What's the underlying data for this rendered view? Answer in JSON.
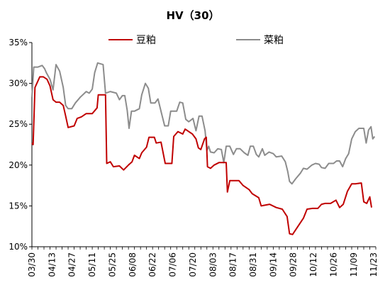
{
  "chart_data": {
    "type": "line",
    "title": "HV（30）",
    "xlabel": "",
    "ylabel": "",
    "ylim": [
      10,
      35
    ],
    "yticks": [
      "10%",
      "15%",
      "20%",
      "25%",
      "30%",
      "35%"
    ],
    "yunit": "%",
    "grid": false,
    "legend_position": "top-center",
    "x_tick_labels": [
      "03/30",
      "04/13",
      "04/27",
      "05/11",
      "05/25",
      "06/08",
      "06/22",
      "07/06",
      "07/20",
      "08/03",
      "08/17",
      "08/31",
      "09/14",
      "09/28",
      "10/12",
      "10/26",
      "11/09",
      "11/23"
    ],
    "series": [
      {
        "name": "豆粕",
        "color": "#c00000",
        "points": [
          [
            0,
            22.7
          ],
          [
            0.2,
            22.5
          ],
          [
            0.5,
            29.5
          ],
          [
            1.3,
            30.8
          ],
          [
            1.9,
            30.8
          ],
          [
            2.5,
            30.5
          ],
          [
            3,
            29.7
          ],
          [
            3.5,
            28
          ],
          [
            4,
            27.7
          ],
          [
            4.6,
            27.7
          ],
          [
            5.2,
            27.3
          ],
          [
            5.6,
            26
          ],
          [
            6,
            24.6
          ],
          [
            7,
            24.8
          ],
          [
            7.5,
            25.7
          ],
          [
            8.2,
            25.9
          ],
          [
            9,
            26.3
          ],
          [
            10,
            26.3
          ],
          [
            10.8,
            27
          ],
          [
            11,
            28.6
          ],
          [
            12.2,
            28.6
          ],
          [
            12.4,
            20.2
          ],
          [
            13,
            20.4
          ],
          [
            13.5,
            19.8
          ],
          [
            14.5,
            19.9
          ],
          [
            15.2,
            19.4
          ],
          [
            16,
            20
          ],
          [
            16.6,
            20.4
          ],
          [
            17,
            21.2
          ],
          [
            17.8,
            20.8
          ],
          [
            18.2,
            21.5
          ],
          [
            19,
            22.2
          ],
          [
            19.4,
            23.4
          ],
          [
            20.3,
            23.4
          ],
          [
            20.6,
            22.7
          ],
          [
            21.4,
            22.8
          ],
          [
            21.8,
            21.3
          ],
          [
            22.1,
            20.2
          ],
          [
            23.2,
            20.2
          ],
          [
            23.5,
            23.5
          ],
          [
            24.2,
            24.1
          ],
          [
            25,
            23.8
          ],
          [
            25.4,
            24.4
          ],
          [
            26,
            24.1
          ],
          [
            26.6,
            23.8
          ],
          [
            27.2,
            23.2
          ],
          [
            27.6,
            22.1
          ],
          [
            28,
            21.9
          ],
          [
            28.6,
            23.2
          ],
          [
            28.9,
            23.4
          ],
          [
            29.1,
            19.8
          ],
          [
            29.6,
            19.6
          ],
          [
            30.2,
            20
          ],
          [
            31,
            20.3
          ],
          [
            32.2,
            20.3
          ],
          [
            32.4,
            16.7
          ],
          [
            32.8,
            18.1
          ],
          [
            34.3,
            18.1
          ],
          [
            35,
            17.5
          ],
          [
            36,
            17
          ],
          [
            36.5,
            16.5
          ],
          [
            37.6,
            16
          ],
          [
            38,
            15
          ],
          [
            39.4,
            15.2
          ],
          [
            40.5,
            14.8
          ],
          [
            41.5,
            14.6
          ],
          [
            42.3,
            13.7
          ],
          [
            42.7,
            11.6
          ],
          [
            43.2,
            11.5
          ],
          [
            44,
            12.4
          ],
          [
            45,
            13.5
          ],
          [
            45.6,
            14.6
          ],
          [
            46.5,
            14.7
          ],
          [
            47.4,
            14.7
          ],
          [
            48,
            15.2
          ],
          [
            48.6,
            15.3
          ],
          [
            49.5,
            15.3
          ],
          [
            50.4,
            15.7
          ],
          [
            51,
            14.8
          ],
          [
            51.6,
            15.2
          ],
          [
            52.3,
            16.8
          ],
          [
            53,
            17.7
          ],
          [
            53.6,
            17.7
          ],
          [
            54.6,
            17.8
          ],
          [
            55,
            15.5
          ],
          [
            55.5,
            15.3
          ],
          [
            56,
            16.1
          ],
          [
            56.3,
            14.8
          ]
        ]
      },
      {
        "name": "菜粕",
        "color": "#8c8c8c",
        "points": [
          [
            0,
            28.3
          ],
          [
            0.3,
            32
          ],
          [
            1,
            32
          ],
          [
            1.7,
            32.2
          ],
          [
            2.1,
            31.8
          ],
          [
            2.4,
            31.3
          ],
          [
            3,
            30.5
          ],
          [
            3.5,
            29.2
          ],
          [
            4,
            32.3
          ],
          [
            4.6,
            31.5
          ],
          [
            5.2,
            29.5
          ],
          [
            5.6,
            27.3
          ],
          [
            6,
            26.9
          ],
          [
            6.6,
            26.9
          ],
          [
            7.2,
            27.6
          ],
          [
            8,
            28.3
          ],
          [
            9,
            29
          ],
          [
            9.5,
            28.8
          ],
          [
            10,
            29.3
          ],
          [
            10.4,
            31.3
          ],
          [
            10.9,
            32.5
          ],
          [
            11.8,
            32.3
          ],
          [
            12.2,
            28.8
          ],
          [
            13,
            29
          ],
          [
            14,
            28.8
          ],
          [
            14.5,
            28
          ],
          [
            15,
            28.5
          ],
          [
            15.4,
            28.5
          ],
          [
            15.8,
            26.7
          ],
          [
            16.1,
            24.5
          ],
          [
            16.5,
            26.6
          ],
          [
            17,
            26.6
          ],
          [
            17.8,
            26.9
          ],
          [
            18.2,
            28.6
          ],
          [
            18.8,
            30
          ],
          [
            19.3,
            29.4
          ],
          [
            19.7,
            27.6
          ],
          [
            20.4,
            27.6
          ],
          [
            20.9,
            28.1
          ],
          [
            21.5,
            26.3
          ],
          [
            22,
            24.8
          ],
          [
            22.6,
            24.8
          ],
          [
            23,
            26.6
          ],
          [
            24,
            26.6
          ],
          [
            24.5,
            27.7
          ],
          [
            25,
            27.6
          ],
          [
            25.5,
            25.6
          ],
          [
            26,
            25.3
          ],
          [
            26.7,
            25.7
          ],
          [
            27.2,
            24.2
          ],
          [
            27.7,
            26
          ],
          [
            28.2,
            26
          ],
          [
            28.7,
            24.2
          ],
          [
            29,
            21.8
          ],
          [
            29.3,
            22.3
          ],
          [
            29.6,
            21.6
          ],
          [
            30.2,
            21.5
          ],
          [
            30.8,
            22
          ],
          [
            31.4,
            21.9
          ],
          [
            31.8,
            20.3
          ],
          [
            32.2,
            22.3
          ],
          [
            32.8,
            22.3
          ],
          [
            33.4,
            21.3
          ],
          [
            33.9,
            22
          ],
          [
            34.5,
            22
          ],
          [
            35.2,
            21.5
          ],
          [
            35.8,
            21.2
          ],
          [
            36.2,
            22.3
          ],
          [
            36.7,
            22.3
          ],
          [
            37.2,
            21.3
          ],
          [
            37.6,
            21
          ],
          [
            38.2,
            22
          ],
          [
            38.6,
            21.2
          ],
          [
            39.3,
            21.6
          ],
          [
            40,
            21.4
          ],
          [
            40.5,
            21
          ],
          [
            41.4,
            21.1
          ],
          [
            42,
            20.4
          ],
          [
            42.4,
            19.2
          ],
          [
            42.7,
            18
          ],
          [
            43.1,
            17.7
          ],
          [
            43.7,
            18.3
          ],
          [
            44.5,
            19
          ],
          [
            45,
            19.6
          ],
          [
            45.6,
            19.5
          ],
          [
            46.4,
            20
          ],
          [
            47,
            20.2
          ],
          [
            47.6,
            20.1
          ],
          [
            48,
            19.7
          ],
          [
            48.6,
            19.6
          ],
          [
            49.2,
            20.2
          ],
          [
            50,
            20.2
          ],
          [
            50.5,
            20.5
          ],
          [
            51,
            20.5
          ],
          [
            51.5,
            19.8
          ],
          [
            52,
            20.8
          ],
          [
            52.5,
            21.4
          ],
          [
            53,
            23.2
          ],
          [
            53.6,
            24.1
          ],
          [
            54.2,
            24.5
          ],
          [
            55,
            24.5
          ],
          [
            55.4,
            22.7
          ],
          [
            55.8,
            24.3
          ],
          [
            56.2,
            24.7
          ],
          [
            56.5,
            23.2
          ],
          [
            56.8,
            23.5
          ]
        ]
      }
    ]
  }
}
